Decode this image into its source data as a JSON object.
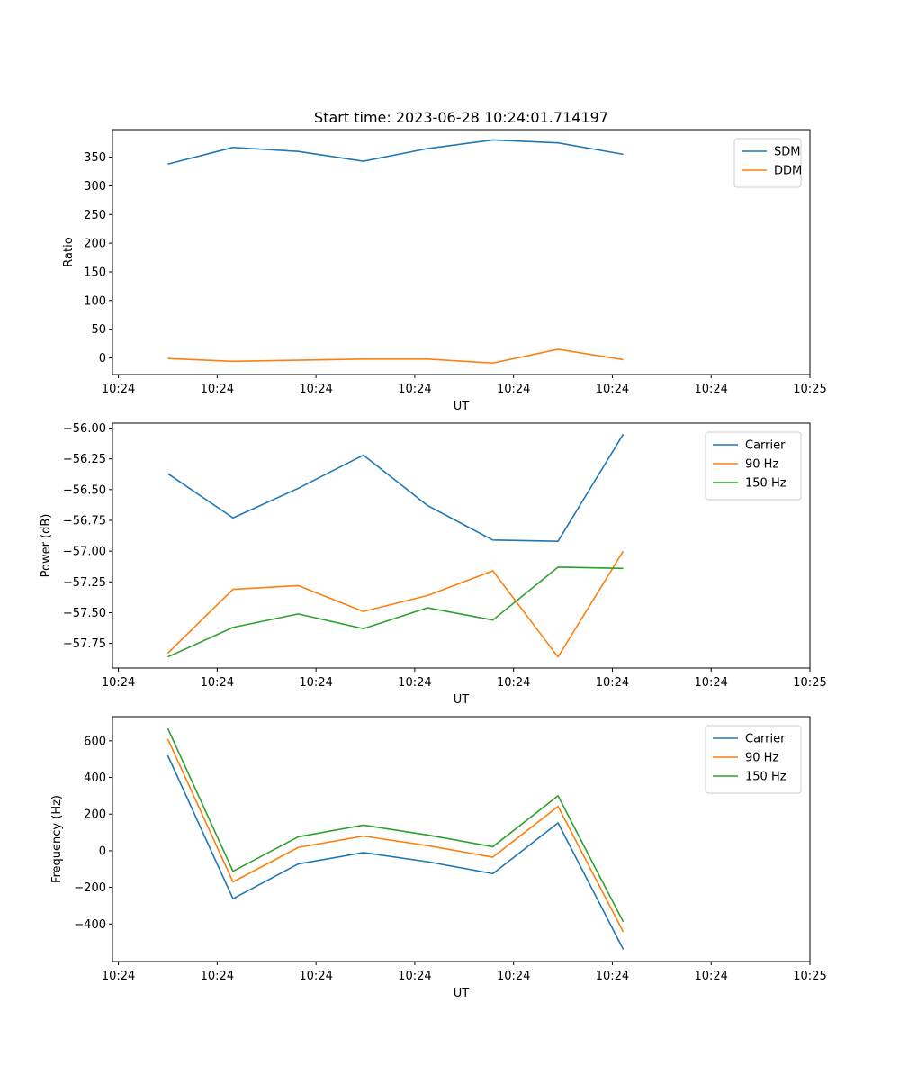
{
  "figure_title": "Start time: 2023-06-28 10:24:01.714197",
  "chart_data": [
    {
      "type": "line",
      "title": "Start time: 2023-06-28 10:24:01.714197",
      "xlabel": "UT",
      "ylabel": "Ratio",
      "x_tick_labels": [
        "10:24",
        "10:24",
        "10:24",
        "10:24",
        "10:24",
        "10:24",
        "10:24",
        "10:25"
      ],
      "x_tick_positions": [
        0,
        1,
        2,
        3,
        4,
        5,
        6,
        7
      ],
      "xlim": [
        -0.06,
        7.0
      ],
      "y_ticks": [
        0,
        50,
        100,
        150,
        200,
        250,
        300,
        350
      ],
      "y_tick_labels": [
        "0",
        "50",
        "100",
        "150",
        "200",
        "250",
        "300",
        "350"
      ],
      "ylim": [
        -29,
        398
      ],
      "grid": false,
      "legend_position": "top-right",
      "x": [
        0.5,
        1.16,
        1.82,
        2.48,
        3.13,
        3.79,
        4.45,
        5.11
      ],
      "series": [
        {
          "name": "SDM",
          "color": "#1f77b4",
          "values": [
            338,
            367,
            360,
            343,
            365,
            380,
            375,
            355
          ]
        },
        {
          "name": "DDM",
          "color": "#ff7f0e",
          "values": [
            -1,
            -6,
            -4,
            -2,
            -2,
            -9,
            15,
            -3
          ]
        }
      ]
    },
    {
      "type": "line",
      "title": "",
      "xlabel": "UT",
      "ylabel": "Power (dB)",
      "x_tick_labels": [
        "10:24",
        "10:24",
        "10:24",
        "10:24",
        "10:24",
        "10:24",
        "10:24",
        "10:25"
      ],
      "x_tick_positions": [
        0,
        1,
        2,
        3,
        4,
        5,
        6,
        7
      ],
      "xlim": [
        -0.06,
        7.0
      ],
      "y_ticks": [
        -57.75,
        -57.5,
        -57.25,
        -57.0,
        -56.75,
        -56.5,
        -56.25,
        -56.0
      ],
      "y_tick_labels": [
        "−57.75",
        "−57.50",
        "−57.25",
        "−57.00",
        "−56.75",
        "−56.50",
        "−56.25",
        "−56.00"
      ],
      "ylim": [
        -57.95,
        -55.96
      ],
      "grid": false,
      "legend_position": "top-right",
      "x": [
        0.5,
        1.16,
        1.82,
        2.48,
        3.13,
        3.79,
        4.45,
        5.11
      ],
      "series": [
        {
          "name": "Carrier",
          "color": "#1f77b4",
          "values": [
            -56.37,
            -56.73,
            -56.49,
            -56.22,
            -56.63,
            -56.91,
            -56.92,
            -56.05
          ]
        },
        {
          "name": "90 Hz",
          "color": "#ff7f0e",
          "values": [
            -57.83,
            -57.31,
            -57.28,
            -57.49,
            -57.36,
            -57.16,
            -57.86,
            -57.0
          ]
        },
        {
          "name": "150 Hz",
          "color": "#2ca02c",
          "values": [
            -57.86,
            -57.62,
            -57.51,
            -57.63,
            -57.46,
            -57.56,
            -57.13,
            -57.14
          ]
        }
      ]
    },
    {
      "type": "line",
      "title": "",
      "xlabel": "UT",
      "ylabel": "Frequency (Hz)",
      "x_tick_labels": [
        "10:24",
        "10:24",
        "10:24",
        "10:24",
        "10:24",
        "10:24",
        "10:24",
        "10:25"
      ],
      "x_tick_positions": [
        0,
        1,
        2,
        3,
        4,
        5,
        6,
        7
      ],
      "xlim": [
        -0.06,
        7.0
      ],
      "y_ticks": [
        -400,
        -200,
        0,
        200,
        400,
        600
      ],
      "y_tick_labels": [
        "−400",
        "−200",
        "0",
        "200",
        "400",
        "600"
      ],
      "ylim": [
        -605,
        732
      ],
      "grid": false,
      "legend_position": "top-right",
      "x": [
        0.5,
        1.16,
        1.82,
        2.48,
        3.13,
        3.79,
        4.45,
        5.11
      ],
      "series": [
        {
          "name": "Carrier",
          "color": "#1f77b4",
          "values": [
            520,
            -262,
            -72,
            -10,
            -60,
            -125,
            152,
            -538
          ]
        },
        {
          "name": "90 Hz",
          "color": "#ff7f0e",
          "values": [
            610,
            -170,
            18,
            80,
            28,
            -35,
            242,
            -442
          ]
        },
        {
          "name": "150 Hz",
          "color": "#2ca02c",
          "values": [
            668,
            -112,
            76,
            140,
            86,
            22,
            300,
            -388
          ]
        }
      ]
    }
  ]
}
